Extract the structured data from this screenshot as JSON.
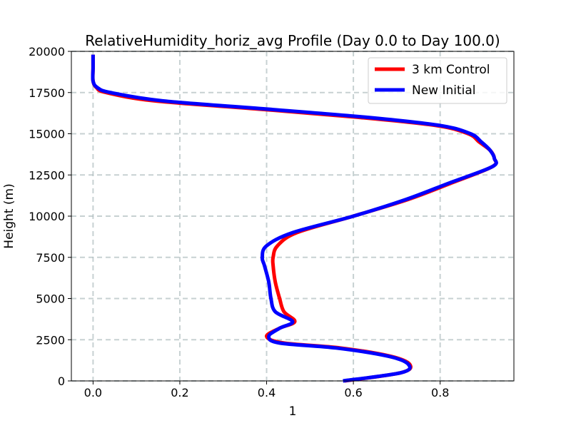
{
  "chart_data": {
    "type": "line",
    "title": "RelativeHumidity_horiz_avg Profile (Day 0.0 to Day 100.0)",
    "xlabel": "1",
    "ylabel": "Height (m)",
    "xlim": [
      -0.05,
      0.97
    ],
    "ylim": [
      0,
      20000
    ],
    "xticks": [
      0.0,
      0.2,
      0.4,
      0.6,
      0.8
    ],
    "xtick_labels": [
      "0.0",
      "0.2",
      "0.4",
      "0.6",
      "0.8"
    ],
    "yticks": [
      0,
      2500,
      5000,
      7500,
      10000,
      12500,
      15000,
      17500,
      20000
    ],
    "ytick_labels": [
      "0",
      "2500",
      "5000",
      "7500",
      "10000",
      "12500",
      "15000",
      "17500",
      "20000"
    ],
    "grid": true,
    "legend_position": "upper right",
    "heights": [
      0,
      500,
      1000,
      1500,
      2000,
      2300,
      2700,
      3200,
      3600,
      4200,
      5000,
      6000,
      7000,
      7500,
      8200,
      9000,
      10000,
      11000,
      12000,
      13000,
      13500,
      14000,
      14500,
      15000,
      15500,
      16000,
      16500,
      17000,
      17500,
      17800,
      18200,
      19000,
      19800
    ],
    "series": [
      {
        "name": "3 km Control",
        "color": "#ff0000",
        "values": [
          0.58,
          0.71,
          0.73,
          0.685,
          0.57,
          0.44,
          0.4,
          0.43,
          0.465,
          0.44,
          0.43,
          0.42,
          0.415,
          0.415,
          0.425,
          0.47,
          0.6,
          0.725,
          0.825,
          0.92,
          0.925,
          0.915,
          0.89,
          0.865,
          0.79,
          0.61,
          0.38,
          0.14,
          0.03,
          0.008,
          0.0,
          0.0,
          0.0
        ]
      },
      {
        "name": "New Initial",
        "color": "#0000ff",
        "values": [
          0.576,
          0.71,
          0.727,
          0.68,
          0.56,
          0.43,
          0.405,
          0.43,
          0.46,
          0.42,
          0.41,
          0.405,
          0.395,
          0.39,
          0.4,
          0.46,
          0.6,
          0.72,
          0.82,
          0.92,
          0.925,
          0.915,
          0.895,
          0.87,
          0.8,
          0.63,
          0.4,
          0.16,
          0.04,
          0.01,
          0.0,
          0.0,
          0.0
        ]
      }
    ]
  }
}
